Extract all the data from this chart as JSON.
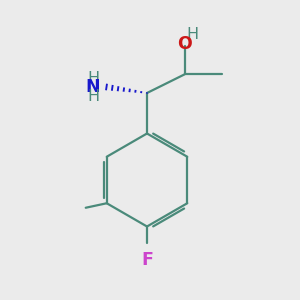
{
  "background_color": "#ebebeb",
  "bond_color": "#4a8a7a",
  "bond_width": 1.6,
  "atom_colors": {
    "N": "#1818cc",
    "O": "#cc1818",
    "F": "#cc44cc",
    "C": "#4a8a7a",
    "H": "#4a8a7a"
  },
  "font_size": 11.5,
  "figsize": [
    3.0,
    3.0
  ],
  "dpi": 100,
  "xlim": [
    0,
    10
  ],
  "ylim": [
    0,
    10
  ]
}
